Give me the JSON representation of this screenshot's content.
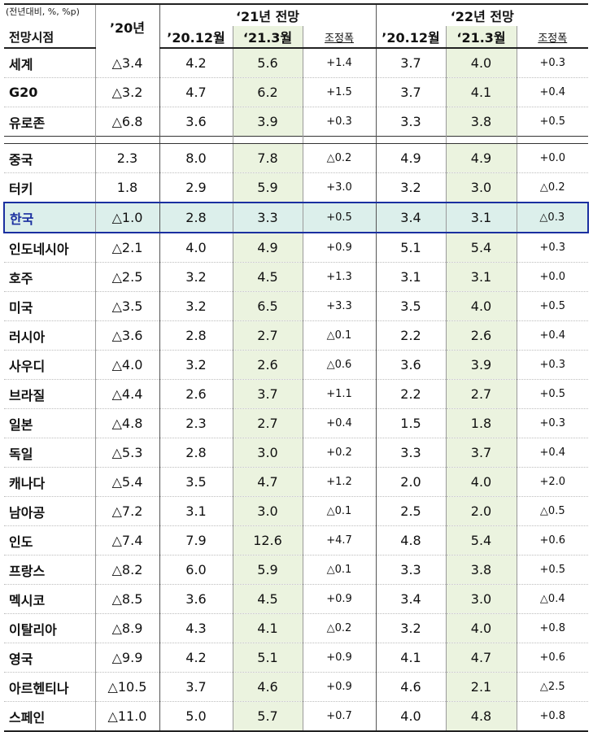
{
  "header": {
    "unit": "(전년대비, %, %p)",
    "country_col": "전망시점",
    "y2020": "’20년",
    "y2021": "‘21년  전망",
    "y2022": "‘22년  전망",
    "dec": "’20.12월",
    "mar": "‘21.3월",
    "adj": "조정폭"
  },
  "groups": [
    [
      [
        "세계",
        "△3.4",
        "4.2",
        "5.6",
        "+1.4",
        "3.7",
        "4.0",
        "+0.3"
      ],
      [
        "G20",
        "△3.2",
        "4.7",
        "6.2",
        "+1.5",
        "3.7",
        "4.1",
        "+0.4"
      ],
      [
        "유로존",
        "△6.8",
        "3.6",
        "3.9",
        "+0.3",
        "3.3",
        "3.8",
        "+0.5"
      ]
    ],
    [
      [
        "중국",
        "2.3",
        "8.0",
        "7.8",
        "△0.2",
        "4.9",
        "4.9",
        "+0.0"
      ],
      [
        "터키",
        "1.8",
        "2.9",
        "5.9",
        "+3.0",
        "3.2",
        "3.0",
        "△0.2"
      ],
      [
        "한국",
        "△1.0",
        "2.8",
        "3.3",
        "+0.5",
        "3.4",
        "3.1",
        "△0.3"
      ],
      [
        "인도네시아",
        "△2.1",
        "4.0",
        "4.9",
        "+0.9",
        "5.1",
        "5.4",
        "+0.3"
      ],
      [
        "호주",
        "△2.5",
        "3.2",
        "4.5",
        "+1.3",
        "3.1",
        "3.1",
        "+0.0"
      ],
      [
        "미국",
        "△3.5",
        "3.2",
        "6.5",
        "+3.3",
        "3.5",
        "4.0",
        "+0.5"
      ],
      [
        "러시아",
        "△3.6",
        "2.8",
        "2.7",
        "△0.1",
        "2.2",
        "2.6",
        "+0.4"
      ],
      [
        "사우디",
        "△4.0",
        "3.2",
        "2.6",
        "△0.6",
        "3.6",
        "3.9",
        "+0.3"
      ],
      [
        "브라질",
        "△4.4",
        "2.6",
        "3.7",
        "+1.1",
        "2.2",
        "2.7",
        "+0.5"
      ],
      [
        "일본",
        "△4.8",
        "2.3",
        "2.7",
        "+0.4",
        "1.5",
        "1.8",
        "+0.3"
      ],
      [
        "독일",
        "△5.3",
        "2.8",
        "3.0",
        "+0.2",
        "3.3",
        "3.7",
        "+0.4"
      ],
      [
        "캐나다",
        "△5.4",
        "3.5",
        "4.7",
        "+1.2",
        "2.0",
        "4.0",
        "+2.0"
      ],
      [
        "남아공",
        "△7.2",
        "3.1",
        "3.0",
        "△0.1",
        "2.5",
        "2.0",
        "△0.5"
      ],
      [
        "인도",
        "△7.4",
        "7.9",
        "12.6",
        "+4.7",
        "4.8",
        "5.4",
        "+0.6"
      ],
      [
        "프랑스",
        "△8.2",
        "6.0",
        "5.9",
        "△0.1",
        "3.3",
        "3.8",
        "+0.5"
      ],
      [
        "멕시코",
        "△8.5",
        "3.6",
        "4.5",
        "+0.9",
        "3.4",
        "3.0",
        "△0.4"
      ],
      [
        "이탈리아",
        "△8.9",
        "4.3",
        "4.1",
        "△0.2",
        "3.2",
        "4.0",
        "+0.8"
      ],
      [
        "영국",
        "△9.9",
        "4.2",
        "5.1",
        "+0.9",
        "4.1",
        "4.7",
        "+0.6"
      ],
      [
        "아르헨티나",
        "△10.5",
        "3.7",
        "4.6",
        "+0.9",
        "4.6",
        "2.1",
        "△2.5"
      ],
      [
        "스페인",
        "△11.0",
        "5.0",
        "5.7",
        "+0.7",
        "4.0",
        "4.8",
        "+0.8"
      ]
    ]
  ],
  "highlight_country": "한국",
  "colors": {
    "highlight_row": "#dcefeb",
    "highlight_border": "#1a2fa0",
    "march_column": "#ebf3df"
  }
}
